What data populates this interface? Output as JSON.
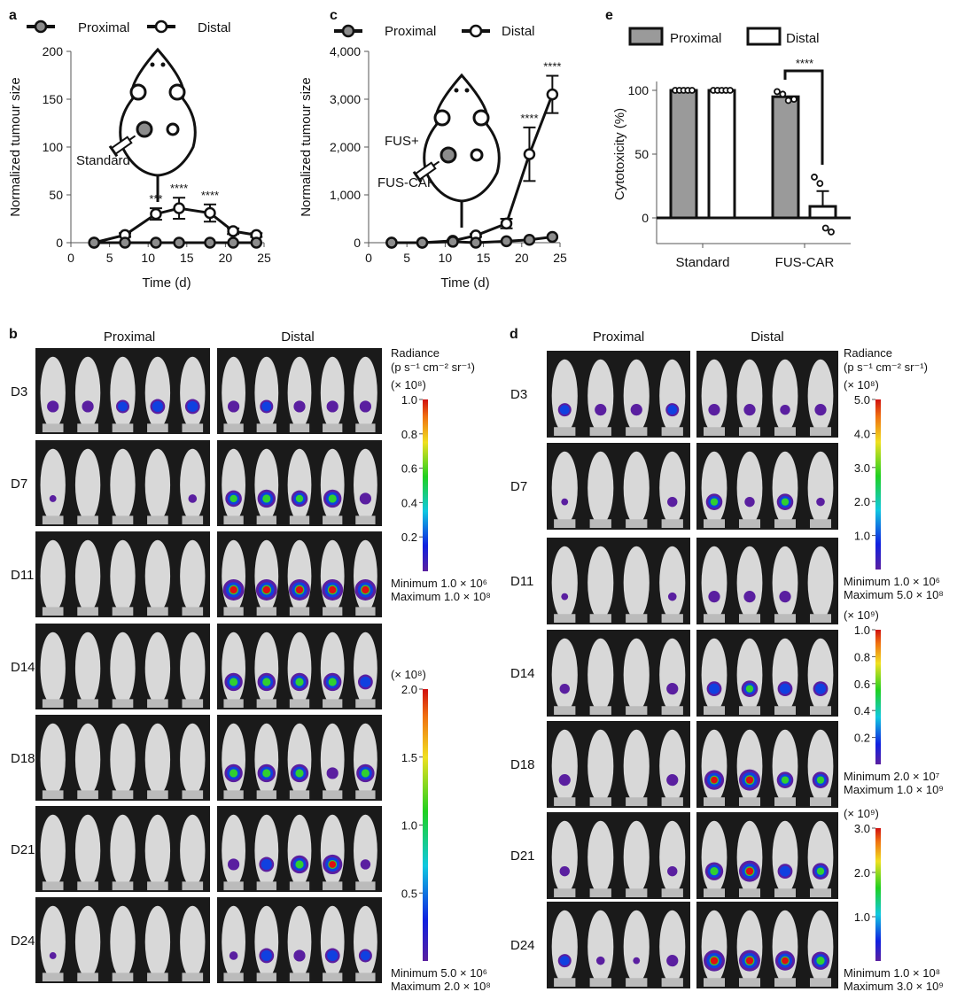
{
  "panel_labels": {
    "a": "a",
    "b": "b",
    "c": "c",
    "d": "d",
    "e": "e"
  },
  "colors": {
    "proximal": "#8c8c8c",
    "distal": "#ffffff",
    "line": "#111111",
    "bg_image": "#1a1a1a",
    "mouse": "#d8d8d8"
  },
  "chart_data": [
    {
      "id": "a",
      "type": "line",
      "xlabel": "Time (d)",
      "ylabel": "Normalized tumour size",
      "xlim": [
        0,
        25
      ],
      "ylim": [
        0,
        200
      ],
      "xticks": [
        "0",
        "5",
        "10",
        "15",
        "20",
        "25"
      ],
      "yticks": [
        "0",
        "50",
        "100",
        "150",
        "200"
      ],
      "x": [
        3,
        7,
        11,
        14,
        18,
        21,
        24
      ],
      "legend": [
        "Proximal",
        "Distal"
      ],
      "inset_label": "Standard",
      "series": [
        {
          "name": "Proximal",
          "values": [
            0,
            0,
            0,
            0,
            0,
            0,
            0
          ],
          "err": [
            0,
            0,
            0,
            0,
            0,
            0,
            0
          ]
        },
        {
          "name": "Distal",
          "values": [
            0,
            8,
            30,
            36,
            31,
            12,
            8
          ],
          "err": [
            0,
            2,
            6,
            11,
            9,
            3,
            2
          ]
        }
      ],
      "annotations": [
        {
          "x": 11,
          "text": "***"
        },
        {
          "x": 14,
          "text": "****"
        },
        {
          "x": 18,
          "text": "****"
        }
      ]
    },
    {
      "id": "c",
      "type": "line",
      "xlabel": "Time (d)",
      "ylabel": "Normalized tumour size",
      "xlim": [
        0,
        25
      ],
      "ylim": [
        0,
        4000
      ],
      "xticks": [
        "0",
        "5",
        "10",
        "15",
        "20",
        "25"
      ],
      "yticks": [
        "0",
        "1,000",
        "2,000",
        "3,000",
        "4,000"
      ],
      "x": [
        3,
        7,
        11,
        14,
        18,
        21,
        24
      ],
      "legend": [
        "Proximal",
        "Distal"
      ],
      "inset_label_top": "FUS+",
      "inset_label": "FUS-CAR",
      "series": [
        {
          "name": "Proximal",
          "values": [
            0,
            0,
            20,
            0,
            30,
            60,
            120
          ],
          "err": [
            0,
            0,
            0,
            0,
            0,
            0,
            0
          ]
        },
        {
          "name": "Distal",
          "values": [
            0,
            0,
            40,
            150,
            400,
            1850,
            3100
          ],
          "err": [
            0,
            0,
            20,
            30,
            100,
            560,
            390
          ]
        }
      ],
      "annotations": [
        {
          "x": 21,
          "text": "****"
        },
        {
          "x": 24,
          "text": "****"
        }
      ]
    },
    {
      "id": "e",
      "type": "bar",
      "ylabel": "Cytotoxicity (%)",
      "ylim": [
        -20,
        100
      ],
      "yticks": [
        "0",
        "50",
        "100"
      ],
      "categories": [
        "Standard",
        "FUS-CAR"
      ],
      "legend": [
        "Proximal",
        "Distal"
      ],
      "series": [
        {
          "name": "Proximal",
          "values": [
            100,
            95
          ],
          "points": [
            [
              100,
              100,
              100,
              100,
              100
            ],
            [
              99,
              97,
              92,
              93
            ]
          ]
        },
        {
          "name": "Distal",
          "values": [
            100,
            9
          ],
          "err": [
            0,
            12
          ],
          "points": [
            [
              100,
              100,
              100,
              100,
              100
            ],
            [
              32,
              27,
              -8,
              -11
            ]
          ]
        }
      ],
      "annotation": "****"
    }
  ],
  "panel_b": {
    "col_headers": [
      "Proximal",
      "Distal"
    ],
    "rows": [
      "D3",
      "D7",
      "D11",
      "D14",
      "D18",
      "D21",
      "D24"
    ],
    "proximal": [
      [
        0.4,
        0.4,
        0.5,
        0.6,
        0.6
      ],
      [
        0.1,
        0,
        0,
        0,
        0.2
      ],
      [
        0,
        0,
        0,
        0,
        0
      ],
      [
        0,
        0,
        0,
        0,
        0
      ],
      [
        0,
        0,
        0,
        0,
        0
      ],
      [
        0,
        0,
        0,
        0,
        0
      ],
      [
        0.1,
        0,
        0,
        0,
        0
      ]
    ],
    "distal": [
      [
        0.4,
        0.5,
        0.4,
        0.4,
        0.4
      ],
      [
        0.7,
        0.8,
        0.7,
        0.8,
        0.4
      ],
      [
        1,
        1,
        1,
        1,
        1
      ],
      [
        0.8,
        0.8,
        0.8,
        0.8,
        0.6
      ],
      [
        0.8,
        0.8,
        0.8,
        0.4,
        0.8
      ],
      [
        0.4,
        0.6,
        0.8,
        0.9,
        0.3
      ],
      [
        0.2,
        0.6,
        0.4,
        0.6,
        0.5
      ]
    ],
    "colorbars": [
      {
        "title1": "Radiance",
        "title2": "(p s⁻¹ cm⁻² sr⁻¹)",
        "scale": "(× 10⁸)",
        "ticks": [
          "1.0",
          "0.8",
          "0.6",
          "0.4",
          "0.2"
        ],
        "tick_values": [
          1.0,
          0.8,
          0.6,
          0.4,
          0.2
        ],
        "max": 1.0,
        "min_label": "Minimum 1.0 × 10⁶",
        "max_label": "Maximum 1.0 × 10⁸"
      },
      {
        "scale": "(× 10⁸)",
        "ticks": [
          "2.0",
          "1.5",
          "1.0",
          "0.5"
        ],
        "tick_values": [
          2.0,
          1.5,
          1.0,
          0.5
        ],
        "max": 2.0,
        "min_label": "Minimum 5.0 × 10⁶",
        "max_label": "Maximum 2.0 × 10⁸"
      }
    ]
  },
  "panel_d": {
    "col_headers": [
      "Proximal",
      "Distal"
    ],
    "rows": [
      "D3",
      "D7",
      "D11",
      "D14",
      "D18",
      "D21",
      "D24"
    ],
    "proximal": [
      [
        0.5,
        0.4,
        0.4,
        0.5
      ],
      [
        0.1,
        0,
        0,
        0.3
      ],
      [
        0.1,
        0,
        0,
        0.2
      ],
      [
        0.3,
        0,
        0,
        0.4
      ],
      [
        0.4,
        0,
        0,
        0.4
      ],
      [
        0.3,
        0,
        0,
        0.3
      ],
      [
        0.5,
        0.2,
        0.1,
        0.4
      ]
    ],
    "distal": [
      [
        0.4,
        0.4,
        0.3,
        0.4
      ],
      [
        0.7,
        0.3,
        0.7,
        0.2
      ],
      [
        0.4,
        0.4,
        0.4,
        0
      ],
      [
        0.6,
        0.7,
        0.6,
        0.6
      ],
      [
        0.9,
        1,
        0.7,
        0.7
      ],
      [
        0.8,
        1,
        0.6,
        0.7
      ],
      [
        1,
        1,
        0.9,
        0.8
      ]
    ],
    "colorbars": [
      {
        "title1": "Radiance",
        "title2": "(p s⁻¹ cm⁻² sr⁻¹)",
        "scale": "(× 10⁸)",
        "ticks": [
          "5.0",
          "4.0",
          "3.0",
          "2.0",
          "1.0"
        ],
        "tick_values": [
          5,
          4,
          3,
          2,
          1
        ],
        "max": 5.0,
        "min_label": "Minimum 1.0 × 10⁶",
        "max_label": "Maximum 5.0 × 10⁸"
      },
      {
        "scale": "(× 10⁹)",
        "ticks": [
          "1.0",
          "0.8",
          "0.6",
          "0.4",
          "0.2"
        ],
        "tick_values": [
          1,
          0.8,
          0.6,
          0.4,
          0.2
        ],
        "max": 1.0,
        "min_label": "Minimum 2.0 × 10⁷",
        "max_label": "Maximum 1.0 × 10⁹"
      },
      {
        "scale": "(× 10⁹)",
        "ticks": [
          "3.0",
          "2.0",
          "1.0"
        ],
        "tick_values": [
          3,
          2,
          1
        ],
        "max": 3.0,
        "min_label": "Minimum 1.0 × 10⁸",
        "max_label": "Maximum 3.0 × 10⁹"
      }
    ]
  }
}
